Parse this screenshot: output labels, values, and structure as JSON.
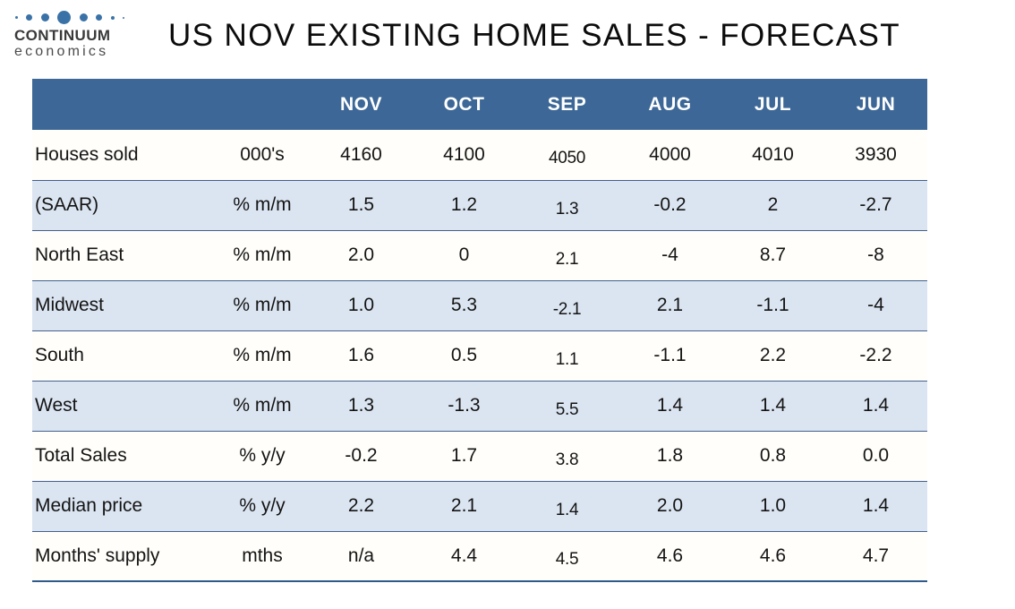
{
  "logo": {
    "icon": "dots-icon",
    "name": "CONTINUUM",
    "tagline": "economics"
  },
  "title": "US NOV EXISTING HOME SALES - FORECAST",
  "chart_data": {
    "type": "table",
    "title": "US NOV EXISTING HOME SALES - FORECAST",
    "columns": [
      "NOV",
      "OCT",
      "SEP",
      "AUG",
      "JUL",
      "JUN"
    ],
    "rows": [
      {
        "label": "Houses sold",
        "unit": "000's",
        "values": [
          "4160",
          "4100",
          "4050",
          "4000",
          "4010",
          "3930"
        ]
      },
      {
        "label": "(SAAR)",
        "unit": "% m/m",
        "values": [
          "1.5",
          "1.2",
          "1.3",
          "-0.2",
          "2",
          "-2.7"
        ]
      },
      {
        "label": "North East",
        "unit": "% m/m",
        "values": [
          "2.0",
          "0",
          "2.1",
          "-4",
          "8.7",
          "-8"
        ]
      },
      {
        "label": "Midwest",
        "unit": "% m/m",
        "values": [
          "1.0",
          "5.3",
          "-2.1",
          "2.1",
          "-1.1",
          "-4"
        ]
      },
      {
        "label": "South",
        "unit": "% m/m",
        "values": [
          "1.6",
          "0.5",
          "1.1",
          "-1.1",
          "2.2",
          "-2.2"
        ]
      },
      {
        "label": "West",
        "unit": "% m/m",
        "values": [
          "1.3",
          "-1.3",
          "5.5",
          "1.4",
          "1.4",
          "1.4"
        ]
      },
      {
        "label": "Total Sales",
        "unit": "% y/y",
        "values": [
          "-0.2",
          "1.7",
          "3.8",
          "1.8",
          "0.8",
          "0.0"
        ]
      },
      {
        "label": "Median price",
        "unit": "% y/y",
        "values": [
          "2.2",
          "2.1",
          "1.4",
          "2.0",
          "1.0",
          "1.4"
        ]
      },
      {
        "label": "Months' supply",
        "unit": "mths",
        "values": [
          "n/a",
          "4.4",
          "4.5",
          "4.6",
          "4.6",
          "4.7"
        ]
      }
    ]
  },
  "colors": {
    "header_bg": "#3c6796",
    "row_alt_bg": "#dbe5f1",
    "row_bg": "#fffefa",
    "row_border": "#44608e",
    "bottom_border": "#2f5b8c",
    "header_text": "#ffffff",
    "body_text": "#141414",
    "accent_dot": "#3a72a8"
  }
}
